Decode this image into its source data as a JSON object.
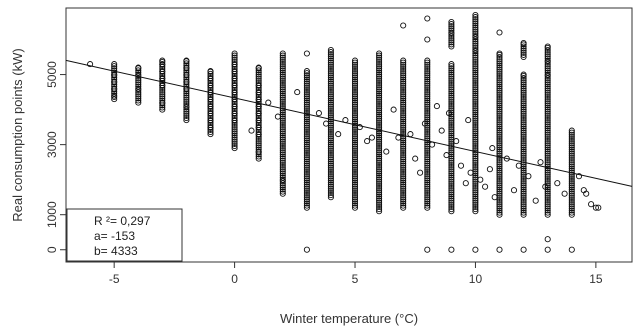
{
  "chart_data": {
    "type": "scatter",
    "xlabel": "Winter temperature (°C)",
    "ylabel": "Real consumption points (kW)",
    "xlim": [
      -7,
      16.5
    ],
    "ylim": [
      -350,
      6900
    ],
    "x_ticks": [
      -5,
      0,
      5,
      10,
      15
    ],
    "y_ticks": [
      0,
      1000,
      3000,
      5000
    ],
    "grid": false,
    "marker": "open-circle",
    "colors": {
      "points": "#111111",
      "line": "#111111",
      "frame": "#333333"
    },
    "regression": {
      "slope": -153,
      "intercept": 4333,
      "r2": 0.297,
      "x_range": [
        -7,
        16.5
      ]
    },
    "stats_box": {
      "placement": "bottom-left",
      "lines": [
        "R  ²= 0,297",
        "a= -153",
        "b= 4333"
      ]
    },
    "columns": [
      {
        "x": -6,
        "values": [
          5300
        ]
      },
      {
        "x": -5,
        "values": [
          4300,
          4400,
          4600,
          4800,
          5000,
          5300
        ]
      },
      {
        "x": -4,
        "values": [
          4200,
          4600,
          5000,
          5200
        ]
      },
      {
        "x": -3,
        "values": [
          4000,
          4200,
          4500,
          4700,
          4900,
          5100,
          5300,
          5400
        ]
      },
      {
        "x": -2,
        "values": [
          3700,
          4100,
          4400,
          4600,
          4800,
          5000,
          5200,
          5400
        ]
      },
      {
        "x": -1,
        "values": [
          3300,
          3500,
          3700,
          3900,
          4100,
          4300,
          4500,
          4700,
          4900,
          5100
        ]
      },
      {
        "x": 0,
        "values": [
          2900,
          3200,
          3500,
          3700,
          3900,
          4100,
          4300,
          4500,
          4700,
          4900,
          5100,
          5300,
          5600
        ]
      },
      {
        "x": 1,
        "values": [
          2600,
          2800,
          3100,
          3300,
          3500,
          3700,
          3900,
          4100,
          4300,
          4500,
          4700,
          5000,
          5200
        ]
      },
      {
        "x": 2,
        "values": [
          1600,
          2000,
          2300,
          2600,
          2900,
          3200,
          3500,
          3800,
          4100,
          4400,
          4700,
          5000,
          5300,
          5600
        ]
      },
      {
        "x": 3,
        "values": [
          0,
          1200,
          1500,
          1800,
          2100,
          2400,
          2700,
          3000,
          3300,
          3600,
          3900,
          4200,
          4500,
          4800,
          5100,
          5600
        ]
      },
      {
        "x": 4,
        "values": [
          1500,
          1800,
          2100,
          2400,
          2700,
          3000,
          3300,
          3600,
          3900,
          4200,
          4500,
          4800,
          5100,
          5400,
          5700
        ]
      },
      {
        "x": 5,
        "values": [
          1200,
          1500,
          1800,
          2100,
          2400,
          2700,
          3000,
          3300,
          3600,
          3900,
          4200,
          4500,
          4800,
          5100,
          5400
        ]
      },
      {
        "x": 6,
        "values": [
          1100,
          1400,
          1700,
          2000,
          2300,
          2600,
          2900,
          3200,
          3500,
          3800,
          4100,
          4400,
          4700,
          5000,
          5300,
          5600
        ]
      },
      {
        "x": 7,
        "values": [
          1200,
          1500,
          1800,
          2100,
          2400,
          2700,
          3000,
          3300,
          3600,
          3900,
          4200,
          4500,
          4800,
          5100,
          5400,
          6400
        ]
      },
      {
        "x": 8,
        "values": [
          0,
          1200,
          1500,
          1800,
          2100,
          2400,
          2700,
          3000,
          3300,
          3600,
          3900,
          4200,
          4500,
          4800,
          5100,
          5400,
          6000,
          6600
        ]
      },
      {
        "x": 9,
        "values": [
          0,
          1100,
          1400,
          1700,
          2000,
          2300,
          2600,
          2900,
          3200,
          3500,
          3800,
          4100,
          4400,
          4700,
          5000,
          5300,
          5800,
          6200,
          6500
        ]
      },
      {
        "x": 10,
        "values": [
          0,
          1100,
          1400,
          1700,
          2000,
          2300,
          2600,
          2900,
          3200,
          3500,
          3800,
          4100,
          4400,
          4700,
          5000,
          5300,
          5700,
          6100,
          6400,
          6700
        ]
      },
      {
        "x": 11,
        "values": [
          0,
          1000,
          1300,
          1600,
          1900,
          2200,
          2500,
          2800,
          3100,
          3400,
          3700,
          4000,
          4300,
          4600,
          4900,
          5200,
          5600,
          6200
        ]
      },
      {
        "x": 12,
        "values": [
          0,
          1000,
          1300,
          1600,
          1900,
          2200,
          2500,
          2800,
          3100,
          3400,
          3700,
          4000,
          4300,
          4600,
          5000,
          5500,
          5900
        ]
      },
      {
        "x": 13,
        "values": [
          0,
          300,
          1000,
          1300,
          1600,
          1900,
          2200,
          2500,
          2800,
          3100,
          3400,
          3700,
          4000,
          4300,
          4600,
          5000,
          5400,
          5800
        ]
      },
      {
        "x": 14,
        "values": [
          0,
          1000,
          1300,
          1600,
          1900,
          2200,
          2500,
          2800,
          3100,
          3400
        ]
      }
    ],
    "scattered_points": [
      [
        0.7,
        3400
      ],
      [
        1.4,
        4200
      ],
      [
        1.8,
        3800
      ],
      [
        2.6,
        4500
      ],
      [
        3.5,
        3900
      ],
      [
        3.8,
        3600
      ],
      [
        4.3,
        3300
      ],
      [
        4.6,
        3700
      ],
      [
        5.2,
        3500
      ],
      [
        5.5,
        3100
      ],
      [
        5.7,
        3200
      ],
      [
        6.3,
        2800
      ],
      [
        6.6,
        4000
      ],
      [
        7.3,
        3300
      ],
      [
        7.5,
        2600
      ],
      [
        7.7,
        2200
      ],
      [
        8.2,
        3000
      ],
      [
        8.4,
        4100
      ],
      [
        8.6,
        3400
      ],
      [
        8.8,
        2700
      ],
      [
        9.2,
        3100
      ],
      [
        9.4,
        2400
      ],
      [
        9.6,
        1900
      ],
      [
        9.8,
        2200
      ],
      [
        10.2,
        2000
      ],
      [
        10.4,
        1800
      ],
      [
        10.6,
        2300
      ],
      [
        10.8,
        1500
      ],
      [
        11.3,
        2600
      ],
      [
        11.6,
        1700
      ],
      [
        12.2,
        2100
      ],
      [
        12.5,
        1400
      ],
      [
        12.7,
        2500
      ],
      [
        13.4,
        1900
      ],
      [
        13.7,
        1600
      ],
      [
        14.3,
        2100
      ],
      [
        14.6,
        1600
      ],
      [
        14.8,
        1300
      ],
      [
        15.0,
        1200
      ],
      [
        15.1,
        1200
      ],
      [
        14.5,
        1700
      ],
      [
        8.9,
        3900
      ],
      [
        9.7,
        3700
      ],
      [
        7.9,
        3600
      ],
      [
        6.8,
        3200
      ],
      [
        10.7,
        2900
      ],
      [
        11.8,
        2400
      ],
      [
        12.9,
        1800
      ]
    ]
  }
}
